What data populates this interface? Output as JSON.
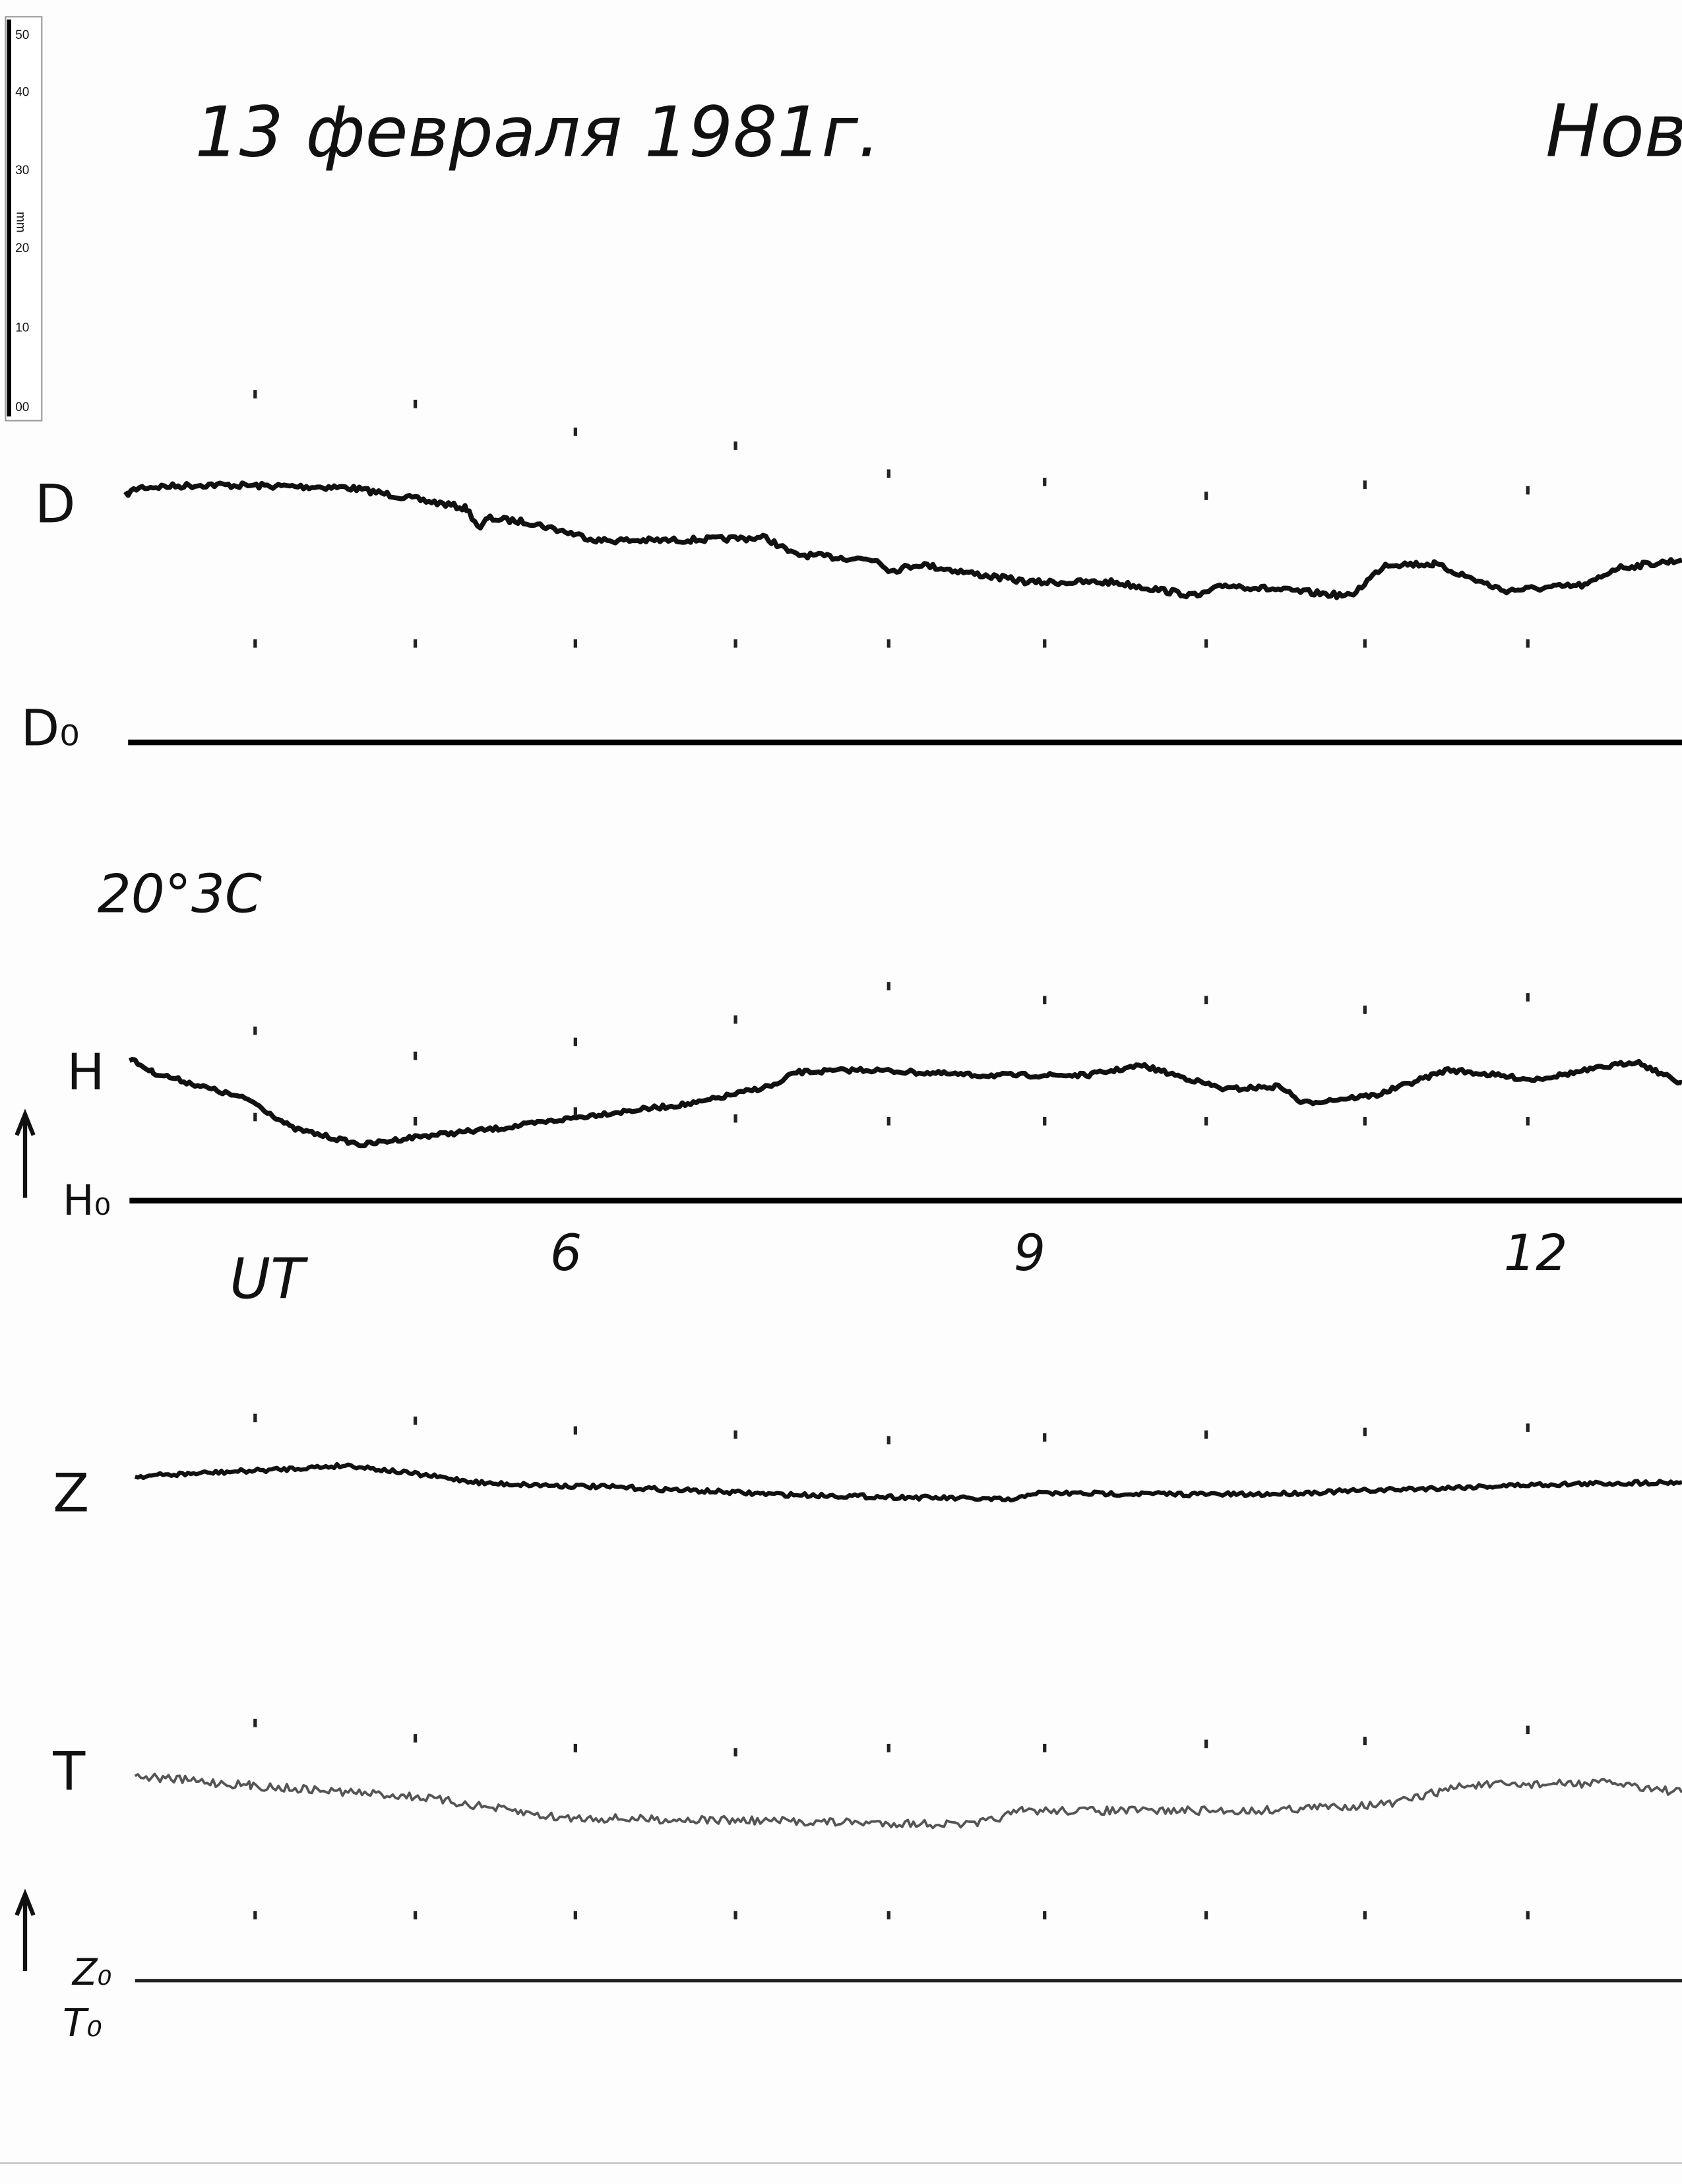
{
  "header": {
    "date": "13 февраля 1981г.",
    "station": "Нов"
  },
  "ruler": {
    "ticks": [
      "50",
      "40",
      "30",
      "20",
      "10",
      "00"
    ],
    "unit": "mm"
  },
  "traces": {
    "d": "D",
    "d0": "D₀",
    "temperature": "20°3C",
    "h": "H",
    "h0": "H₀",
    "z": "Z",
    "t": "T",
    "z0": "Z₀",
    "t0": "T₀"
  },
  "time_axis": {
    "label": "UT",
    "hours": [
      "6",
      "9",
      "12"
    ]
  }
}
